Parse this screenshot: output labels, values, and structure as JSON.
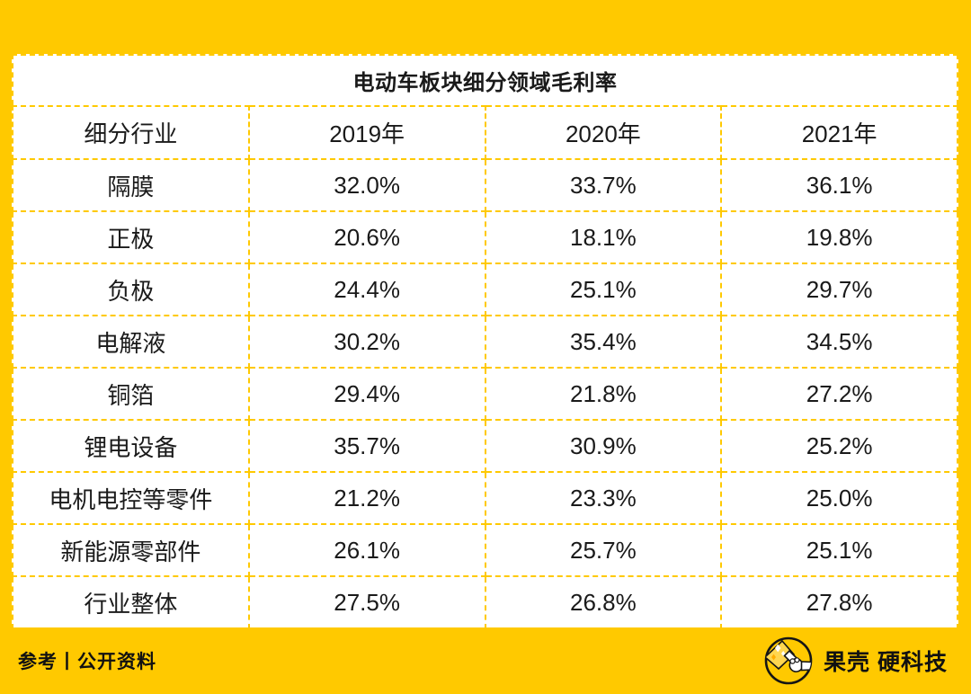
{
  "page": {
    "background_color": "#FFC900",
    "card_color": "#FFFFFF",
    "text_color": "#1A1A1A",
    "grid_style": "dashed-yellow"
  },
  "table": {
    "title": "电动车板块细分领域毛利率",
    "columns": [
      "细分行业",
      "2019年",
      "2020年",
      "2021年"
    ],
    "rows": [
      {
        "label": "隔膜",
        "values": [
          "32.0%",
          "33.7%",
          "36.1%"
        ]
      },
      {
        "label": "正极",
        "values": [
          "20.6%",
          "18.1%",
          "19.8%"
        ]
      },
      {
        "label": "负极",
        "values": [
          "24.4%",
          "25.1%",
          "29.7%"
        ]
      },
      {
        "label": "电解液",
        "values": [
          "30.2%",
          "35.4%",
          "34.5%"
        ]
      },
      {
        "label": "铜箔",
        "values": [
          "29.4%",
          "21.8%",
          "27.2%"
        ]
      },
      {
        "label": "锂电设备",
        "values": [
          "35.7%",
          "30.9%",
          "25.2%"
        ]
      },
      {
        "label": "电机电控等零件",
        "values": [
          "21.2%",
          "23.3%",
          "25.0%"
        ]
      },
      {
        "label": "新能源零部件",
        "values": [
          "26.1%",
          "25.7%",
          "25.1%"
        ]
      },
      {
        "label": "行业整体",
        "values": [
          "27.5%",
          "26.8%",
          "27.8%"
        ]
      }
    ]
  },
  "footer": {
    "source": "参考丨公开资料",
    "brand_name": "果壳",
    "brand_suffix": "硬科技",
    "logo_icon": "guokr-nutcracker-logo"
  },
  "chart_data": {
    "type": "table",
    "title": "电动车板块细分领域毛利率",
    "row_header": "细分行业",
    "categories": [
      "隔膜",
      "正极",
      "负极",
      "电解液",
      "铜箔",
      "锂电设备",
      "电机电控等零件",
      "新能源零部件",
      "行业整体"
    ],
    "series": [
      {
        "name": "2019年",
        "values": [
          32.0,
          20.6,
          24.4,
          30.2,
          29.4,
          35.7,
          21.2,
          26.1,
          27.5
        ]
      },
      {
        "name": "2020年",
        "values": [
          33.7,
          18.1,
          25.1,
          35.4,
          21.8,
          30.9,
          23.3,
          25.7,
          26.8
        ]
      },
      {
        "name": "2021年",
        "values": [
          36.1,
          19.8,
          29.7,
          34.5,
          27.2,
          25.2,
          25.0,
          25.1,
          27.8
        ]
      }
    ],
    "unit": "%"
  }
}
